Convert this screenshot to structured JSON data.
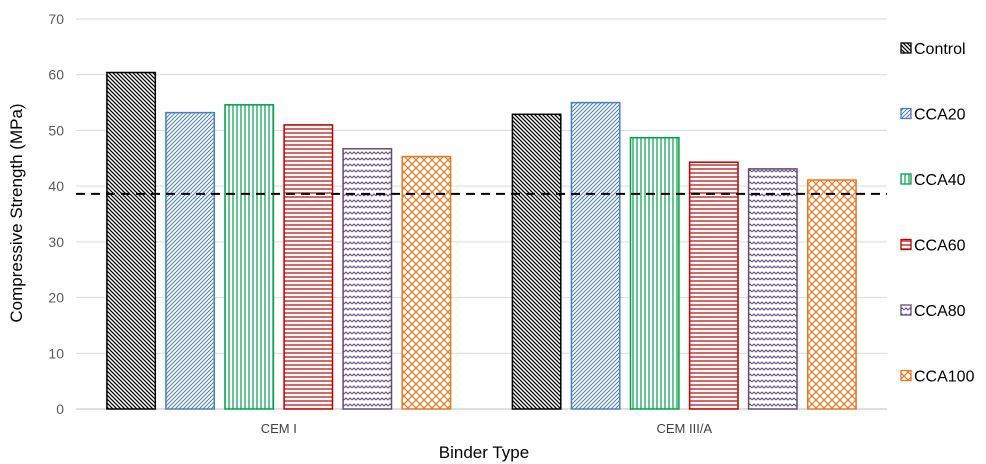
{
  "chart_data": {
    "type": "bar",
    "xlabel": "Binder Type",
    "ylabel": "Compressive Strength (MPa)",
    "ylim": [
      0,
      70
    ],
    "yticks": [
      0,
      10,
      20,
      30,
      40,
      50,
      60,
      70
    ],
    "categories": [
      "CEM I",
      "CEM III/A"
    ],
    "series": [
      {
        "name": "Control",
        "values": [
          60.4,
          52.9
        ],
        "color": "#000000",
        "pattern": "diag-down"
      },
      {
        "name": "CCA20",
        "values": [
          53.2,
          55.0
        ],
        "color": "#4a7ebb",
        "pattern": "diag-up"
      },
      {
        "name": "CCA40",
        "values": [
          54.6,
          48.7
        ],
        "color": "#00a04a",
        "pattern": "vertical"
      },
      {
        "name": "CCA60",
        "values": [
          51.0,
          44.3
        ],
        "color": "#c00000",
        "pattern": "horizontal"
      },
      {
        "name": "CCA80",
        "values": [
          46.7,
          43.1
        ],
        "color": "#604a7b",
        "pattern": "zigzag"
      },
      {
        "name": "CCA100",
        "values": [
          45.3,
          41.1
        ],
        "color": "#e87722",
        "pattern": "lattice"
      }
    ],
    "reference_line": {
      "value": 38.6,
      "style": "dashed",
      "color": "#000000"
    },
    "grid": true,
    "legend_position": "right"
  }
}
